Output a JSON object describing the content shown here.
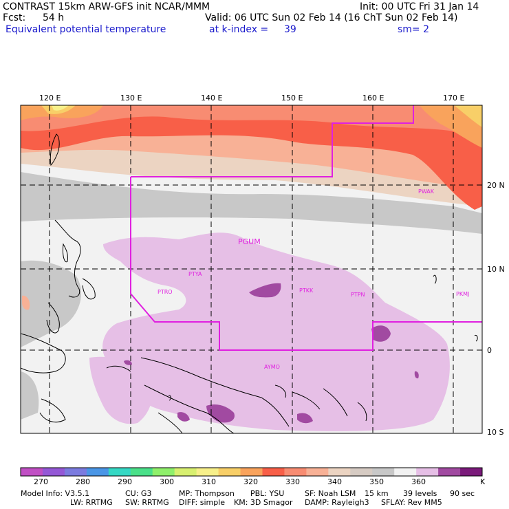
{
  "header": {
    "title": "CONTRAST 15km ARW-GFS init   NCAR/MMM",
    "init": "Init: 00 UTC Fri 31 Jan 14",
    "fcst_label": "Fcst:",
    "fcst_value": "54 h",
    "valid": "Valid: 06 UTC Sun 02 Feb 14 (16 ChT Sun 02 Feb 14)",
    "field": "Equivalent potential temperature",
    "level_label": "at k-index =",
    "level_value": "39",
    "smooth": "sm= 2"
  },
  "axes": {
    "lon_ticks": [
      "120 E",
      "130 E",
      "140 E",
      "150 E",
      "160 E",
      "170 E"
    ],
    "lat_ticks": [
      "20 N",
      "10 N",
      "0",
      "10 S"
    ]
  },
  "stations": [
    "PGUM",
    "PTYA",
    "PTRO",
    "PTKK",
    "PTPN",
    "PKMJ",
    "PWAK",
    "AYMO"
  ],
  "colorbar": {
    "labels": [
      "270",
      "280",
      "290",
      "300",
      "310",
      "320",
      "330",
      "340",
      "350",
      "360"
    ],
    "unit": "K",
    "colors": [
      "#c04fc4",
      "#9458d6",
      "#7b7bdf",
      "#4a96e6",
      "#35d8c4",
      "#4ae089",
      "#8ff06b",
      "#d8f070",
      "#f7f08a",
      "#f8cf68",
      "#f9a35c",
      "#f85f48",
      "#f88c72",
      "#f8b196",
      "#ecd4c2",
      "#d6cbc3",
      "#c8c8c8",
      "#f2f2f2",
      "#e6bfe6",
      "#a14aa1",
      "#7a1a7a"
    ]
  },
  "model_info": {
    "line1": [
      "Model Info: V3.5.1",
      "CU: G3",
      "MP: Thompson",
      "PBL: YSU",
      "SF: Noah LSM",
      "15 km",
      "39 levels",
      "90 sec"
    ],
    "line2": [
      "LW: RRTMG",
      "SW: RRTMG",
      "DIFF: simple",
      "KM: 3D Smagor",
      "DAMP: Rayleigh3",
      "SFLAY: Rev MM5"
    ]
  }
}
